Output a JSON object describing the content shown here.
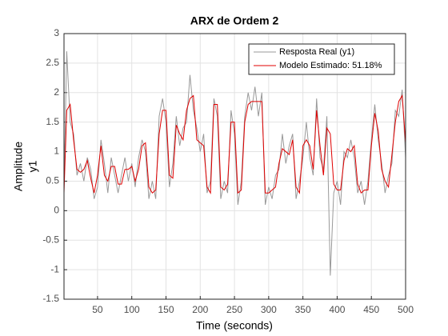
{
  "chart_data": {
    "type": "line",
    "title": "ARX de Ordem 2",
    "xlabel": "Time (seconds)",
    "ylabel": [
      "Amplitude",
      "y1"
    ],
    "x": [
      1,
      5,
      10,
      15,
      20,
      25,
      30,
      35,
      40,
      45,
      50,
      55,
      60,
      65,
      70,
      75,
      80,
      85,
      90,
      95,
      100,
      105,
      110,
      115,
      120,
      125,
      130,
      135,
      140,
      145,
      150,
      155,
      160,
      165,
      170,
      175,
      180,
      185,
      190,
      195,
      200,
      205,
      210,
      215,
      220,
      225,
      230,
      235,
      240,
      245,
      250,
      255,
      260,
      265,
      270,
      275,
      280,
      285,
      290,
      295,
      300,
      305,
      310,
      315,
      320,
      325,
      330,
      335,
      340,
      345,
      350,
      355,
      360,
      365,
      370,
      375,
      380,
      385,
      390,
      395,
      400,
      405,
      410,
      415,
      420,
      425,
      430,
      435,
      440,
      445,
      450,
      455,
      460,
      465,
      470,
      475,
      480,
      485,
      490,
      495,
      500
    ],
    "series": [
      {
        "name": "Resposta Real (y1)",
        "color": "#999999",
        "values": [
          0.4,
          2.7,
          1.5,
          1.3,
          0.6,
          0.8,
          0.5,
          0.9,
          0.7,
          0.2,
          0.4,
          1.2,
          0.8,
          0.3,
          0.9,
          0.6,
          0.3,
          0.6,
          0.9,
          0.5,
          0.8,
          0.4,
          0.9,
          1.2,
          1.0,
          0.2,
          0.5,
          0.2,
          1.6,
          1.9,
          1.5,
          0.4,
          0.8,
          1.6,
          1.1,
          1.4,
          1.5,
          2.3,
          1.7,
          1.4,
          1.0,
          1.3,
          0.3,
          0.5,
          1.9,
          1.6,
          0.2,
          0.5,
          0.3,
          1.7,
          1.3,
          0.1,
          0.5,
          1.6,
          2.0,
          1.7,
          2.1,
          1.6,
          2.0,
          0.1,
          0.4,
          0.2,
          0.6,
          0.7,
          1.3,
          0.8,
          1.1,
          1.3,
          0.2,
          0.5,
          0.9,
          1.5,
          0.9,
          0.6,
          1.9,
          0.9,
          0.7,
          1.6,
          -1.1,
          0.3,
          0.5,
          0.1,
          1.0,
          0.9,
          1.2,
          0.9,
          0.3,
          0.5,
          0.1,
          0.5,
          1.2,
          1.8,
          1.2,
          0.8,
          0.3,
          0.6,
          0.8,
          1.7,
          1.6,
          2.05,
          0.9
        ]
      },
      {
        "name": "Modelo Estimado: 51.18%",
        "color": "#e00000",
        "values": [
          0.3,
          1.7,
          1.8,
          1.2,
          0.7,
          0.65,
          0.7,
          0.85,
          0.55,
          0.3,
          0.6,
          1.1,
          0.6,
          0.5,
          0.75,
          0.75,
          0.45,
          0.45,
          0.7,
          0.7,
          0.75,
          0.5,
          0.7,
          1.1,
          1.15,
          0.4,
          0.3,
          0.35,
          1.3,
          1.7,
          1.7,
          0.6,
          0.55,
          1.45,
          1.3,
          1.2,
          1.7,
          1.9,
          1.95,
          1.2,
          1.15,
          1.1,
          0.4,
          0.3,
          1.8,
          1.8,
          0.4,
          0.35,
          0.45,
          1.5,
          1.5,
          0.3,
          0.35,
          1.5,
          1.8,
          1.85,
          1.85,
          1.85,
          1.85,
          0.3,
          0.3,
          0.35,
          0.4,
          0.8,
          1.05,
          1.0,
          0.95,
          1.2,
          0.4,
          0.3,
          1.1,
          1.2,
          1.1,
          0.7,
          1.7,
          1.1,
          0.6,
          1.4,
          1.3,
          0.45,
          0.35,
          0.35,
          0.85,
          1.05,
          1.0,
          1.1,
          0.45,
          0.3,
          0.35,
          0.35,
          1.1,
          1.65,
          1.35,
          0.7,
          0.5,
          0.4,
          0.95,
          1.5,
          1.85,
          1.95,
          1.15
        ]
      }
    ],
    "xlim": [
      1,
      500
    ],
    "xticks": [
      50,
      100,
      150,
      200,
      250,
      300,
      350,
      400,
      450,
      500
    ],
    "ylim": [
      -1.5,
      3
    ],
    "yticks": [
      -1.5,
      -1,
      -0.5,
      0,
      0.5,
      1,
      1.5,
      2,
      2.5,
      3
    ],
    "grid": true,
    "legend": "northeast"
  }
}
